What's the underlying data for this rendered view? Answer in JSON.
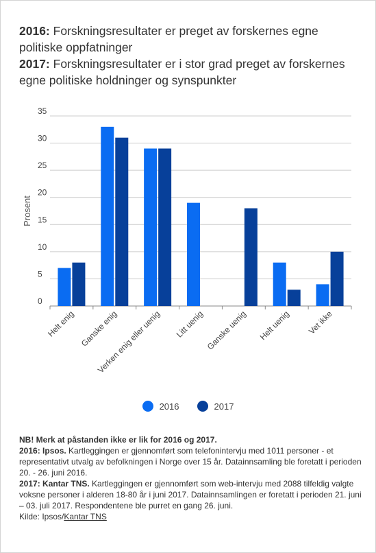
{
  "title": {
    "line1_label": "2016:",
    "line1_text": "Forskningsresultater er preget av forskernes egne politiske oppfatninger",
    "line2_label": "2017:",
    "line2_text": "Forskningsresultater er i stor grad preget av forskernes egne politiske holdninger og synspunkter"
  },
  "colors": {
    "series2016": "#0A6CF2",
    "series2017": "#07409A",
    "grid": "#cccccc"
  },
  "chart_data": {
    "type": "bar",
    "categories": [
      "Helt enig",
      "Ganske enig",
      "Verken enig eller uenig",
      "Litt uenig",
      "Ganske uenig",
      "Helt uenig",
      "Vet ikke"
    ],
    "series": [
      {
        "name": "2016",
        "values": [
          7,
          33,
          29,
          19,
          null,
          8,
          4
        ]
      },
      {
        "name": "2017",
        "values": [
          8,
          31,
          29,
          null,
          18,
          3,
          10
        ]
      }
    ],
    "ylabel": "Prosent",
    "xlabel": "",
    "ylim": [
      0,
      35
    ],
    "yticks": [
      0,
      5,
      10,
      15,
      20,
      25,
      30,
      35
    ],
    "grid": true,
    "legend": "bottom-center"
  },
  "notes": {
    "nb": "NB! Merk at påstanden ikke er lik for 2016 og 2017.",
    "ipsos_label": "2016: Ipsos.",
    "ipsos_text": "Kartleggingen er gjennomført som telefonintervju med 1011 personer - et representativt utvalg av befolkningen i Norge over 15 år. Datainnsamling ble foretatt i perioden 20. - 26. juni 2016.",
    "tns_label": "2017: Kantar TNS.",
    "tns_text": "Kartleggingen er gjennomført som web-intervju med 2088 tilfeldig valgte voksne personer i alderen 18-80 år i juni 2017. Datainnsamlingen er foretatt i perioden 21. juni – 03. juli 2017. Respondentene ble purret en gang 26. juni.",
    "source_prefix": "Kilde: Ipsos/",
    "source_link": "Kantar TNS"
  }
}
